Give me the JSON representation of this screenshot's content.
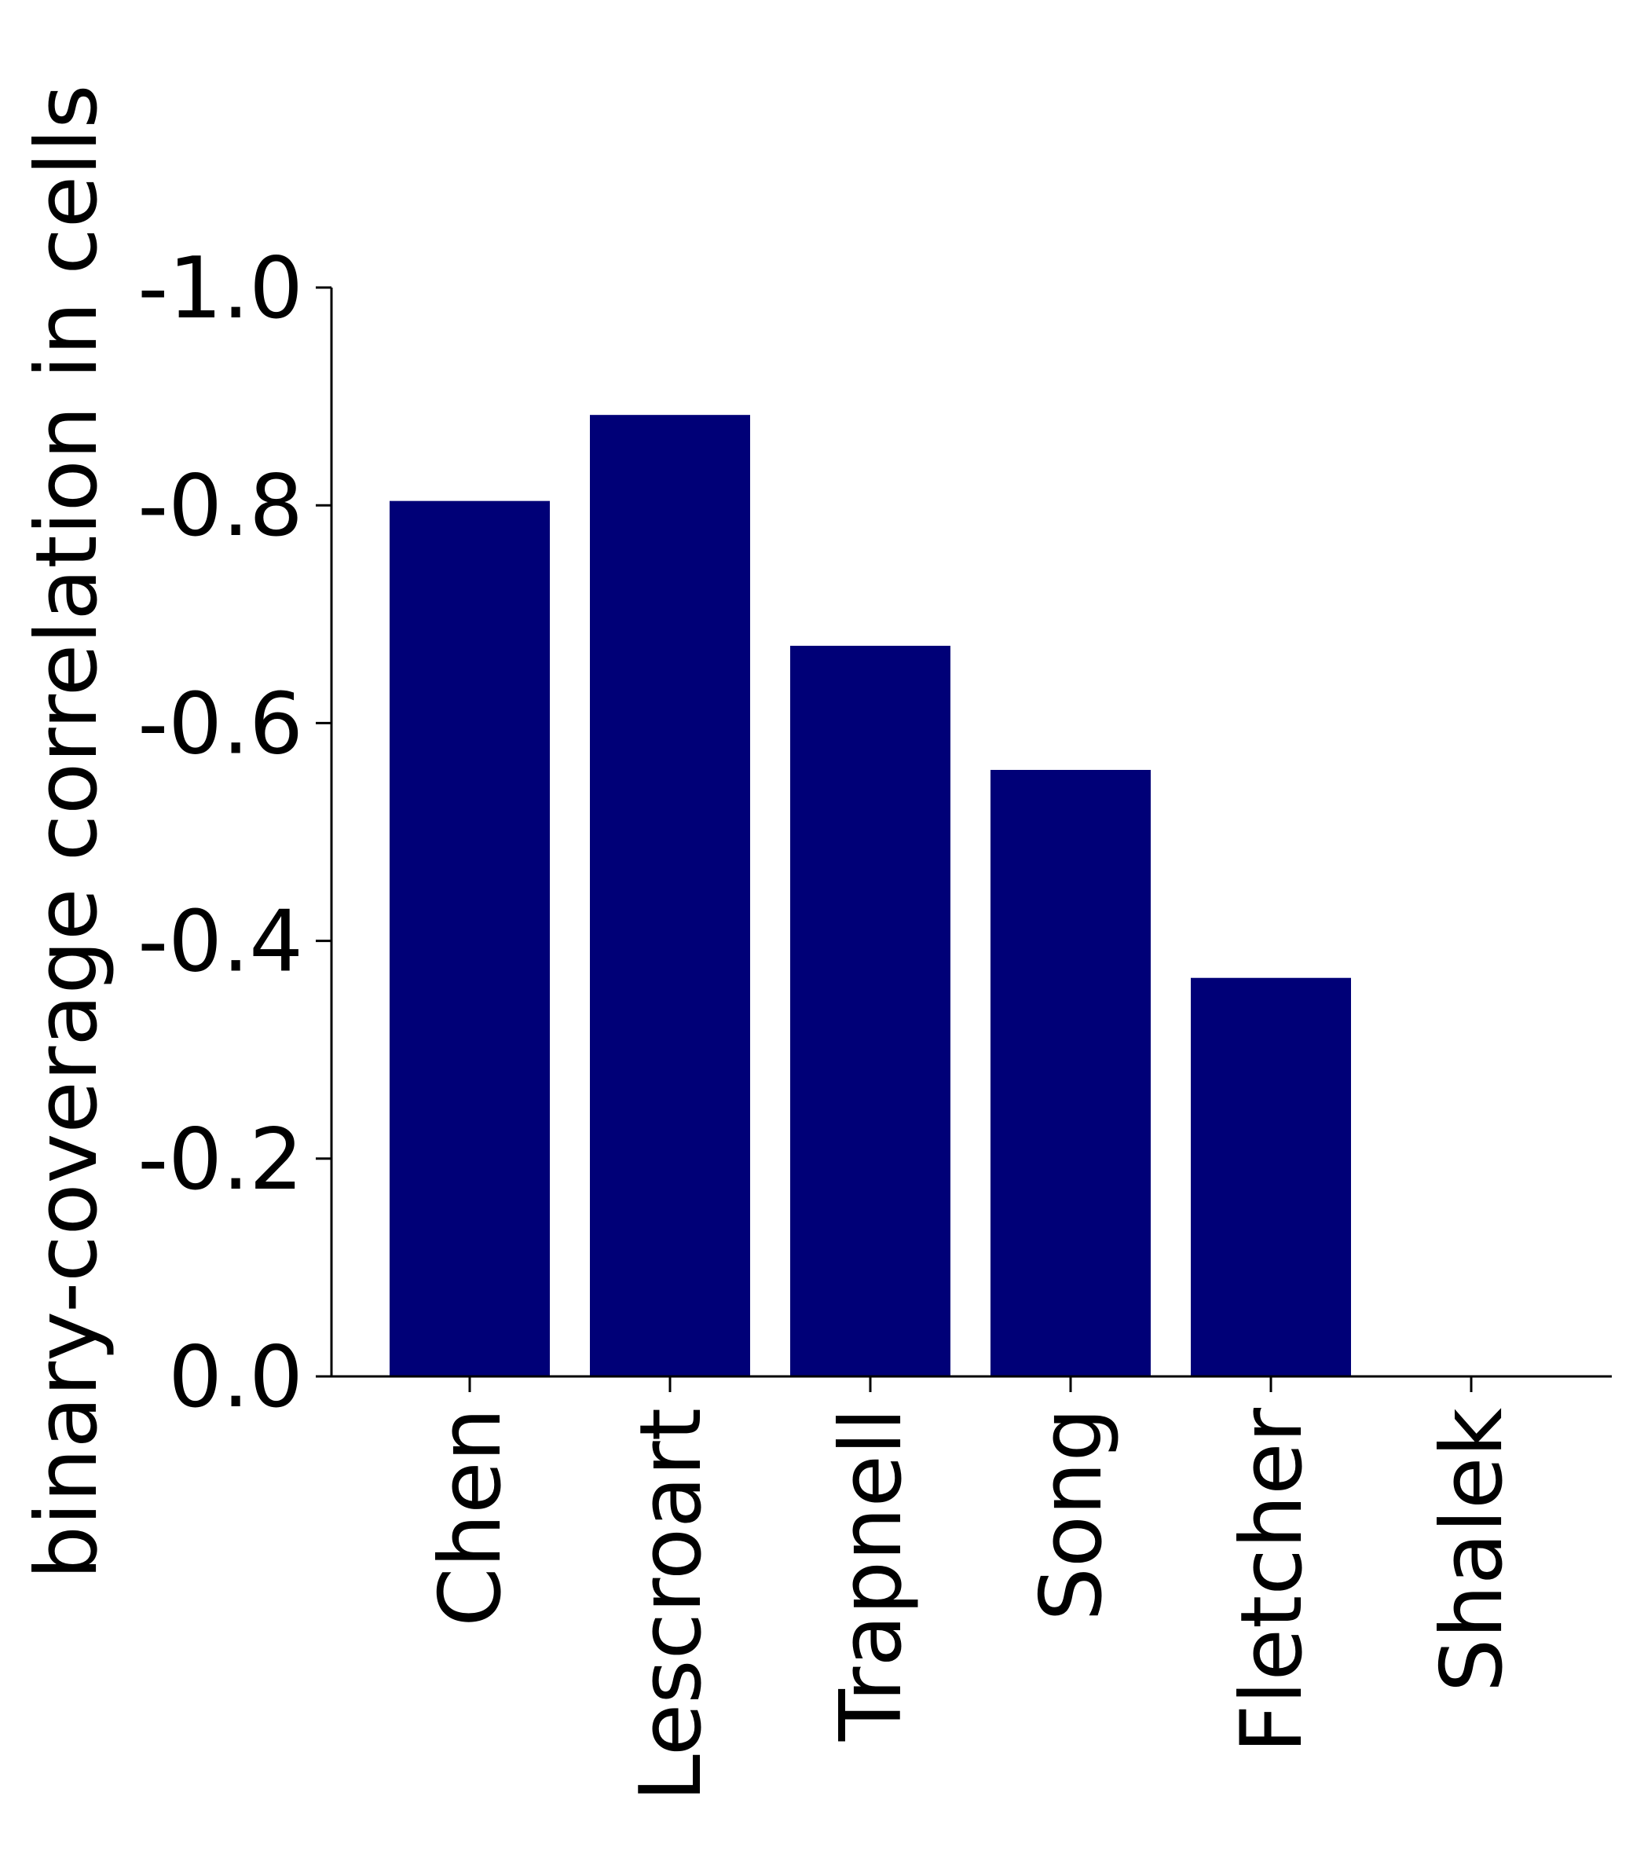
{
  "chart_data": {
    "type": "bar",
    "categories": [
      "Chen",
      "Lescroart",
      "Trapnell",
      "Song",
      "Fletcher",
      "Shalek"
    ],
    "values": [
      -0.804,
      -0.883,
      -0.671,
      -0.557,
      -0.366,
      0.0
    ],
    "title": "",
    "xlabel": "",
    "ylabel": "binary-coverage correlation in cells",
    "ylim": [
      0.0,
      -1.0
    ],
    "yticks": [
      0.0,
      -0.2,
      -0.4,
      -0.6,
      -0.8,
      -1.0
    ],
    "ytick_labels": [
      "0.0",
      "-0.2",
      "-0.4",
      "-0.6",
      "-0.8",
      "-1.0"
    ],
    "y_inverted": true,
    "bar_color": "#000077",
    "grid": false,
    "legend": "none"
  }
}
